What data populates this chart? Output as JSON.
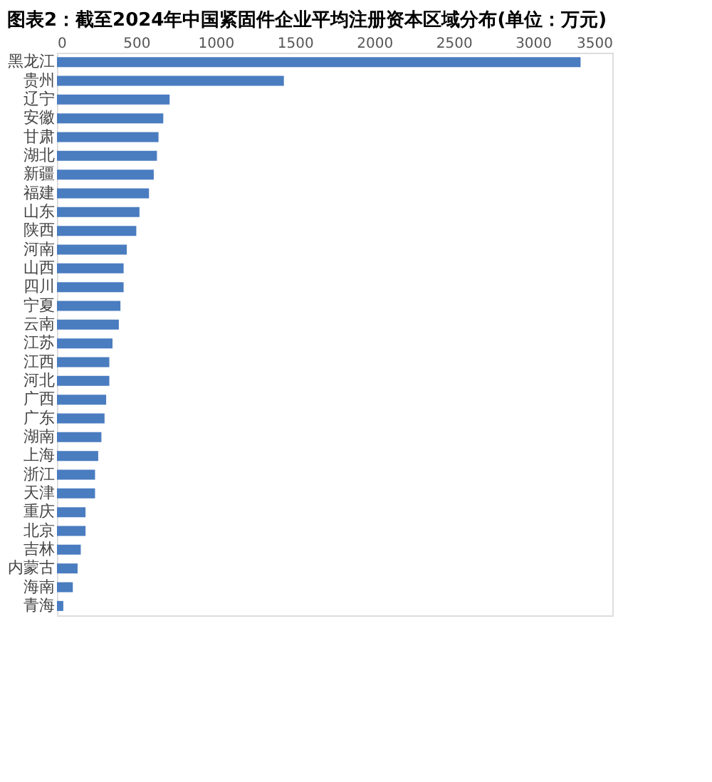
{
  "chart_data": {
    "type": "bar",
    "orientation": "horizontal",
    "title": "图表2：截至2024年中国紧固件企业平均注册资本区域分布(单位：万元)",
    "categories": [
      "黑龙江",
      "贵州",
      "辽宁",
      "安徽",
      "甘肃",
      "湖北",
      "新疆",
      "福建",
      "山东",
      "陕西",
      "河南",
      "山西",
      "四川",
      "宁夏",
      "云南",
      "江苏",
      "江西",
      "河北",
      "广西",
      "广东",
      "湖南",
      "上海",
      "浙江",
      "天津",
      "重庆",
      "北京",
      "吉林",
      "内蒙古",
      "海南",
      "青海"
    ],
    "values": [
      3300,
      1430,
      710,
      670,
      640,
      630,
      610,
      580,
      520,
      500,
      440,
      420,
      420,
      400,
      390,
      350,
      330,
      330,
      310,
      300,
      280,
      260,
      240,
      240,
      180,
      180,
      150,
      130,
      100,
      40
    ],
    "color": "#4a7cc0",
    "xlim": [
      0,
      3500
    ],
    "xticks": [
      0,
      500,
      1000,
      1500,
      2000,
      2500,
      3000,
      3500
    ],
    "grid": false
  }
}
